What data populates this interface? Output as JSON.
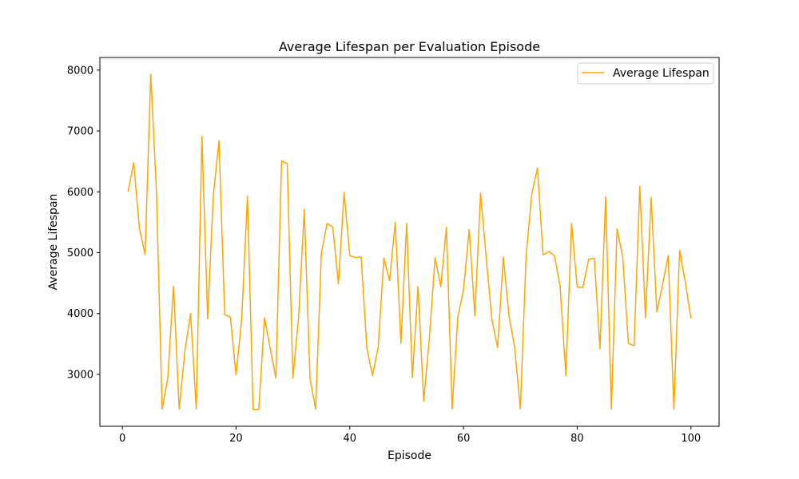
{
  "chart_data": {
    "type": "line",
    "title": "Average Lifespan per Evaluation Episode",
    "xlabel": "Episode",
    "ylabel": "Average Lifespan",
    "xlim": [
      -3.95,
      104.95
    ],
    "ylim": [
      2146,
      8208
    ],
    "xticks": [
      0,
      20,
      40,
      60,
      80,
      100
    ],
    "yticks": [
      3000,
      4000,
      5000,
      6000,
      7000,
      8000
    ],
    "grid": false,
    "legend": "top-right",
    "colors": {
      "series": "#ffa500",
      "axes": "#000000",
      "background": "#ffffff"
    },
    "series": [
      {
        "name": "Average Lifespan",
        "x": [
          1,
          2,
          3,
          4,
          5,
          6,
          7,
          8,
          9,
          10,
          11,
          12,
          13,
          14,
          15,
          16,
          17,
          18,
          19,
          20,
          21,
          22,
          23,
          24,
          25,
          26,
          27,
          28,
          29,
          30,
          31,
          32,
          33,
          34,
          35,
          36,
          37,
          38,
          39,
          40,
          41,
          42,
          43,
          44,
          45,
          46,
          47,
          48,
          49,
          50,
          51,
          52,
          53,
          54,
          55,
          56,
          57,
          58,
          59,
          60,
          61,
          62,
          63,
          64,
          65,
          66,
          67,
          68,
          69,
          70,
          71,
          72,
          73,
          74,
          75,
          76,
          77,
          78,
          79,
          80,
          81,
          82,
          83,
          84,
          85,
          86,
          87,
          88,
          89,
          90,
          91,
          92,
          93,
          94,
          95,
          96,
          97,
          98,
          99,
          100
        ],
        "values": [
          6000,
          6480,
          5400,
          4970,
          7930,
          6000,
          2430,
          2950,
          4450,
          2430,
          3380,
          4000,
          2430,
          6910,
          3910,
          5940,
          6840,
          3980,
          3940,
          2990,
          3920,
          5930,
          2420,
          2420,
          3930,
          3430,
          2940,
          6510,
          6460,
          2940,
          3940,
          5710,
          2930,
          2430,
          4990,
          5480,
          5420,
          4490,
          5990,
          4950,
          4920,
          4930,
          3430,
          2980,
          3450,
          4910,
          4540,
          5500,
          3510,
          5480,
          2950,
          4440,
          2560,
          3600,
          4920,
          4440,
          5420,
          2430,
          3940,
          4390,
          5380,
          3960,
          5980,
          4900,
          3900,
          3440,
          4930,
          3960,
          3440,
          2430,
          4930,
          5960,
          6390,
          4960,
          5020,
          4950,
          4440,
          2980,
          5480,
          4430,
          4430,
          4890,
          4910,
          3420,
          5920,
          2430,
          5390,
          4930,
          3510,
          3470,
          6090,
          3930,
          5910,
          4030,
          4470,
          4950,
          2430,
          5040,
          4520,
          3920
        ]
      }
    ]
  }
}
